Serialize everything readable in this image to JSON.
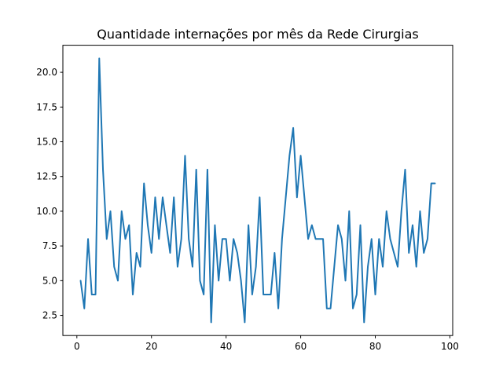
{
  "chart_data": {
    "type": "line",
    "title": "Quantidade internações por mês da Rede Cirurgias",
    "xlabel": "",
    "ylabel": "",
    "xlim": [
      -3.75,
      100.75
    ],
    "ylim": [
      1.05,
      21.95
    ],
    "xticks": [
      0,
      20,
      40,
      60,
      80,
      100
    ],
    "xtick_labels": [
      "0",
      "20",
      "40",
      "60",
      "80",
      "100"
    ],
    "yticks": [
      2.5,
      5.0,
      7.5,
      10.0,
      12.5,
      15.0,
      17.5,
      20.0
    ],
    "ytick_labels": [
      "2.5",
      "5.0",
      "7.5",
      "10.0",
      "12.5",
      "15.0",
      "17.5",
      "20.0"
    ],
    "grid": false,
    "legend": "none",
    "color": "#1f77b4",
    "series": [
      {
        "x": [
          1,
          2,
          3,
          4,
          5,
          6,
          7,
          8,
          9,
          10,
          11,
          12,
          13,
          14,
          15,
          16,
          17,
          18,
          19,
          20,
          21,
          22,
          23,
          24,
          25,
          26,
          27,
          28,
          29,
          30,
          31,
          32,
          33,
          34,
          35,
          36,
          37,
          38,
          39,
          40,
          41,
          42,
          43,
          44,
          45,
          46,
          47,
          48,
          49,
          50,
          51,
          52,
          53,
          54,
          55,
          56,
          57,
          58,
          59,
          60,
          61,
          62,
          63,
          64,
          65,
          66,
          67,
          68,
          69,
          70,
          71,
          72,
          73,
          74,
          75,
          76,
          77,
          78,
          79,
          80,
          81,
          82,
          83,
          84,
          85,
          86,
          87,
          88,
          89,
          90,
          91,
          92,
          93,
          94,
          95,
          96
        ],
        "values": [
          5,
          3,
          8,
          4,
          4,
          21,
          13,
          8,
          10,
          6,
          5,
          10,
          8,
          9,
          4,
          7,
          6,
          12,
          9,
          7,
          11,
          8,
          11,
          9,
          7,
          11,
          6,
          8,
          14,
          8,
          6,
          13,
          5,
          4,
          13,
          2,
          9,
          5,
          8,
          8,
          5,
          8,
          7,
          5,
          2,
          9,
          4,
          6,
          11,
          4,
          4,
          4,
          7,
          3,
          8,
          11,
          14,
          16,
          11,
          14,
          11,
          8,
          9,
          8,
          8,
          8,
          3,
          3,
          6,
          9,
          8,
          5,
          10,
          3,
          4,
          9,
          2,
          6,
          8,
          4,
          8,
          6,
          10,
          8,
          7,
          6,
          10,
          13,
          7,
          9,
          6,
          10,
          7,
          8,
          12,
          12
        ]
      }
    ]
  }
}
